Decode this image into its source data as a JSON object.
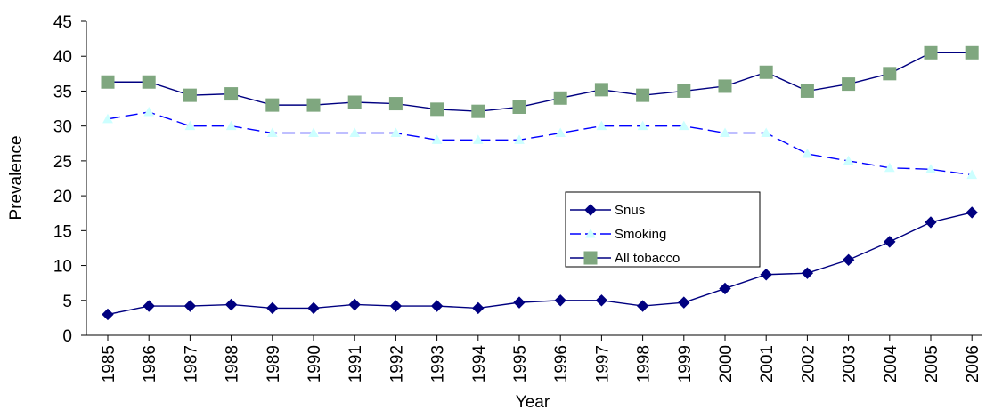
{
  "chart_data": {
    "type": "line",
    "xlabel": "Year",
    "ylabel": "Prevalence",
    "ylim": [
      0,
      45
    ],
    "ytick_step": 5,
    "yticks": [
      "0",
      "5",
      "10",
      "15",
      "20",
      "25",
      "30",
      "35",
      "40",
      "45"
    ],
    "grid": false,
    "legend_position": "center-right",
    "categories": [
      "1985",
      "1986",
      "1987",
      "1988",
      "1989",
      "1990",
      "1991",
      "1992",
      "1993",
      "1994",
      "1995",
      "1996",
      "1997",
      "1998",
      "1999",
      "2000",
      "2001",
      "2002",
      "2003",
      "2004",
      "2005",
      "2006"
    ],
    "series": [
      {
        "name": "Snus",
        "color": "#000080",
        "marker": "diamond",
        "dashed": false,
        "values": [
          3.0,
          4.2,
          4.2,
          4.4,
          3.9,
          3.9,
          4.4,
          4.2,
          4.2,
          3.9,
          4.7,
          5.0,
          5.0,
          4.2,
          4.7,
          6.7,
          8.7,
          8.9,
          10.8,
          13.4,
          16.2,
          17.6
        ]
      },
      {
        "name": "Smoking",
        "color": "#0000ff",
        "marker_color": "#ccffff",
        "marker": "triangle",
        "dashed": true,
        "values": [
          31.0,
          32.0,
          30.0,
          30.0,
          29.0,
          29.0,
          29.0,
          29.0,
          28.0,
          28.0,
          28.0,
          29.0,
          30.0,
          30.0,
          30.0,
          29.0,
          29.0,
          26.0,
          25.0,
          24.0,
          23.8,
          23.0
        ]
      },
      {
        "name": "All tobacco",
        "color": "#000080",
        "marker_color": "#7fa77f",
        "marker": "square",
        "dashed": false,
        "values": [
          36.3,
          36.3,
          34.4,
          34.6,
          33.0,
          33.0,
          33.4,
          33.2,
          32.4,
          32.1,
          32.7,
          34.0,
          35.2,
          34.4,
          35.0,
          35.7,
          37.7,
          35.0,
          36.0,
          37.5,
          40.5,
          40.5
        ]
      }
    ]
  }
}
